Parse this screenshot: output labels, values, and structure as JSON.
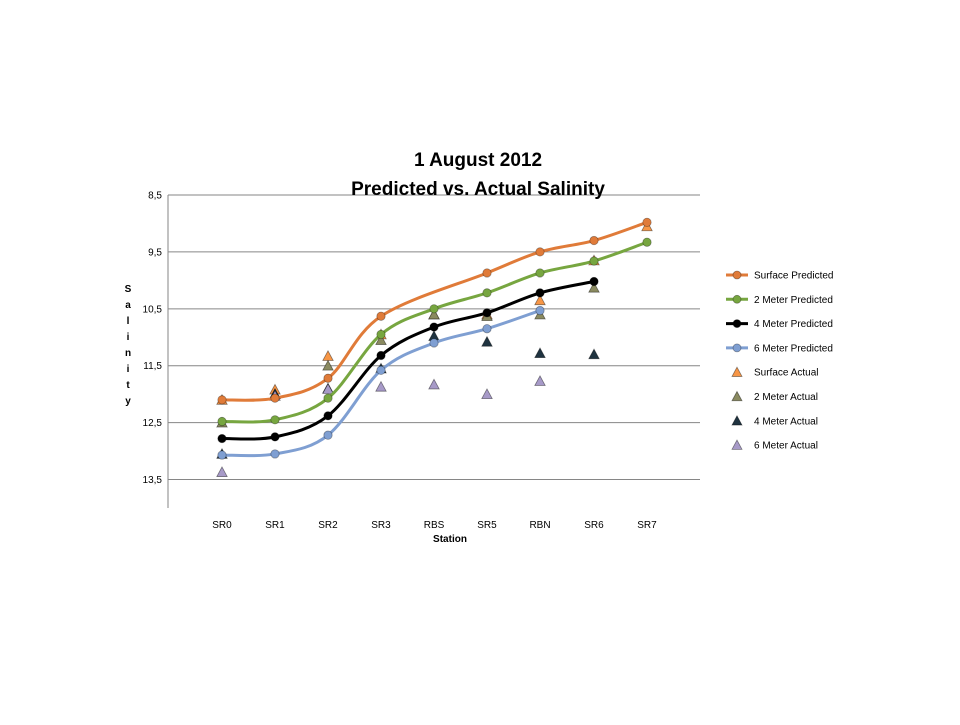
{
  "chart_data": {
    "type": "line",
    "title": [
      "1 August 2012",
      "Predicted vs. Actual Salinity"
    ],
    "xlabel": "Station",
    "ylabel": [
      "S",
      "a",
      "l",
      "i",
      "n",
      "i",
      "t",
      "y"
    ],
    "categories": [
      "SR0",
      "SR1",
      "SR2",
      "SR3",
      "RBS",
      "SR5",
      "RBN",
      "SR6",
      "SR7"
    ],
    "y_ticks": [
      "8,5",
      "9,5",
      "10,5",
      "11,5",
      "12,5",
      "13,5"
    ],
    "y_tick_values": [
      8.5,
      9.5,
      10.5,
      11.5,
      12.5,
      13.5
    ],
    "ylim": [
      8.5,
      14.0
    ],
    "y_inverted": true,
    "grid": "horizontal",
    "legend_position": "right",
    "series": [
      {
        "name": "Surface Predicted",
        "kind": "line",
        "color": "#e07b39",
        "values": [
          12.1,
          12.07,
          11.72,
          10.63,
          null,
          9.87,
          9.5,
          9.3,
          8.98
        ]
      },
      {
        "name": "2 Meter Predicted",
        "kind": "line",
        "color": "#77a640",
        "values": [
          12.48,
          12.45,
          12.07,
          10.95,
          10.5,
          10.22,
          9.87,
          9.66,
          9.33
        ]
      },
      {
        "name": "4 Meter Predicted",
        "kind": "line",
        "color": "#000000",
        "values": [
          12.78,
          12.75,
          12.38,
          11.32,
          10.82,
          10.57,
          10.22,
          10.02,
          null
        ]
      },
      {
        "name": "6 Meter Predicted",
        "kind": "line",
        "color": "#7f9fd2",
        "values": [
          13.07,
          13.05,
          12.72,
          11.58,
          11.1,
          10.85,
          10.53,
          null,
          null
        ]
      },
      {
        "name": "Surface Actual",
        "kind": "marker",
        "color": "#f79646",
        "values": [
          12.1,
          11.92,
          11.33,
          10.95,
          10.6,
          10.6,
          10.35,
          9.65,
          9.05
        ]
      },
      {
        "name": "2 Meter Actual",
        "kind": "marker",
        "color": "#8a8a60",
        "values": [
          12.5,
          12.0,
          11.5,
          11.05,
          10.6,
          10.63,
          10.6,
          10.13,
          null
        ]
      },
      {
        "name": "4 Meter Actual",
        "kind": "marker",
        "color": "#1f3340",
        "values": [
          13.05,
          12.0,
          11.9,
          11.55,
          10.98,
          11.08,
          11.28,
          11.3,
          null
        ]
      },
      {
        "name": "6 Meter Actual",
        "kind": "marker",
        "color": "#a79ac8",
        "values": [
          13.37,
          12.03,
          11.91,
          11.87,
          11.83,
          12.0,
          11.77,
          null,
          null
        ]
      }
    ]
  }
}
